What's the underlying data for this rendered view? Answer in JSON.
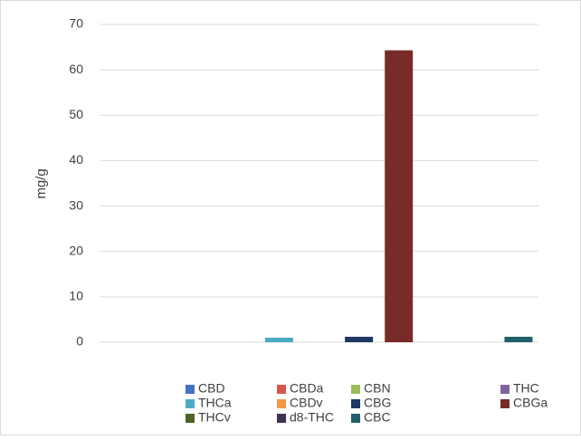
{
  "chart_data": {
    "type": "bar",
    "title": "",
    "xlabel": "",
    "ylabel": "mg/g",
    "ylim": [
      0,
      70
    ],
    "yticks": [
      0,
      10,
      20,
      30,
      40,
      50,
      60,
      70
    ],
    "grid": true,
    "legend_position": "bottom",
    "series": [
      {
        "name": "CBD",
        "value": 0,
        "color": "#4472C4"
      },
      {
        "name": "CBDa",
        "value": 0,
        "color": "#D9534F"
      },
      {
        "name": "CBN",
        "value": 0,
        "color": "#9BBB59"
      },
      {
        "name": "THC",
        "value": 0,
        "color": "#8064A2"
      },
      {
        "name": "THCa",
        "value": 1.0,
        "color": "#4BACC6"
      },
      {
        "name": "CBDv",
        "value": 0,
        "color": "#F79646"
      },
      {
        "name": "CBG",
        "value": 1.2,
        "color": "#1F3864"
      },
      {
        "name": "CBGa",
        "value": 64.3,
        "color": "#772C2A"
      },
      {
        "name": "THCv",
        "value": 0,
        "color": "#4F6228"
      },
      {
        "name": "d8-THC",
        "value": 0,
        "color": "#403151"
      },
      {
        "name": "CBC",
        "value": 1.2,
        "color": "#215F6A"
      }
    ]
  }
}
